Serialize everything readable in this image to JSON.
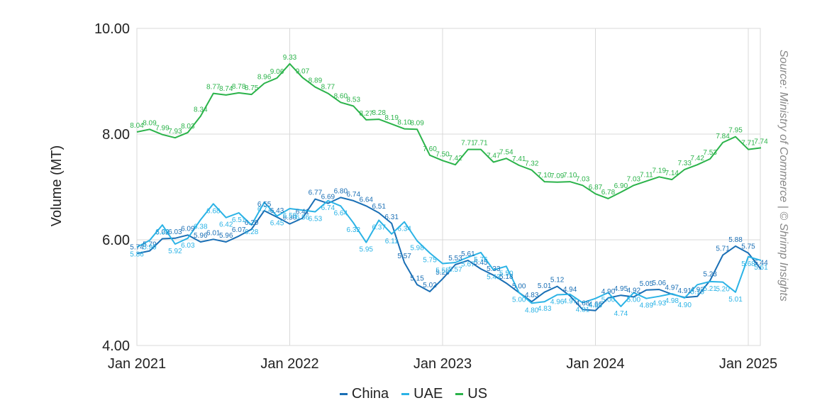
{
  "chart_data": {
    "type": "line",
    "title": "",
    "xlabel": "",
    "ylabel": "Volume (MT)",
    "ylim": [
      4,
      10
    ],
    "y_ticks": [
      "4.00",
      "6.00",
      "8.00",
      "10.00"
    ],
    "x_ticks": [
      "Jan 2021",
      "Jan 2022",
      "Jan 2023",
      "Jan 2024",
      "Jan 2025"
    ],
    "x_tick_index": [
      0,
      12,
      24,
      36,
      48
    ],
    "grid": true,
    "legend_position": "bottom-center",
    "source_note": "Source: Ministry of Commerce | © Shrimp Insights",
    "series": [
      {
        "name": "China",
        "color": "#1a6fb5",
        "values": [
          5.74,
          5.79,
          6.02,
          6.03,
          6.09,
          5.96,
          6.01,
          5.96,
          6.07,
          6.2,
          6.55,
          6.43,
          6.3,
          6.41,
          6.77,
          6.69,
          6.8,
          6.74,
          6.64,
          6.51,
          6.31,
          5.57,
          5.15,
          5.02,
          5.26,
          5.53,
          5.61,
          5.45,
          5.33,
          5.18,
          5.0,
          4.83,
          5.01,
          5.12,
          4.94,
          4.68,
          4.66,
          4.9,
          4.95,
          4.92,
          5.05,
          5.06,
          4.97,
          4.91,
          4.93,
          5.23,
          5.71,
          5.88,
          5.75,
          5.44
        ]
      },
      {
        "name": "UAE",
        "color": "#2bb3e6",
        "values": [
          5.86,
          5.99,
          6.28,
          5.92,
          6.03,
          6.38,
          6.68,
          6.42,
          6.51,
          6.28,
          6.71,
          6.45,
          6.59,
          6.56,
          6.53,
          6.74,
          6.64,
          6.32,
          5.95,
          6.37,
          6.11,
          6.34,
          5.98,
          5.75,
          5.55,
          5.57,
          5.67,
          5.76,
          5.43,
          5.5,
          5.0,
          4.8,
          4.83,
          4.96,
          4.97,
          4.81,
          4.89,
          5.0,
          4.74,
          5.0,
          4.89,
          4.93,
          4.98,
          4.9,
          5.15,
          5.21,
          5.2,
          5.01,
          5.68,
          5.61
        ]
      },
      {
        "name": "US",
        "color": "#2bb34a",
        "values": [
          8.04,
          8.09,
          7.99,
          7.93,
          8.03,
          8.34,
          8.77,
          8.74,
          8.78,
          8.75,
          8.96,
          9.06,
          9.33,
          9.07,
          8.89,
          8.77,
          8.6,
          8.53,
          8.27,
          8.28,
          8.19,
          8.1,
          8.09,
          7.6,
          7.5,
          7.42,
          7.71,
          7.71,
          7.47,
          7.54,
          7.41,
          7.32,
          7.1,
          7.09,
          7.1,
          7.03,
          6.87,
          6.78,
          6.9,
          7.03,
          7.11,
          7.19,
          7.14,
          7.33,
          7.42,
          7.53,
          7.84,
          7.95,
          7.71,
          7.74
        ]
      }
    ]
  }
}
